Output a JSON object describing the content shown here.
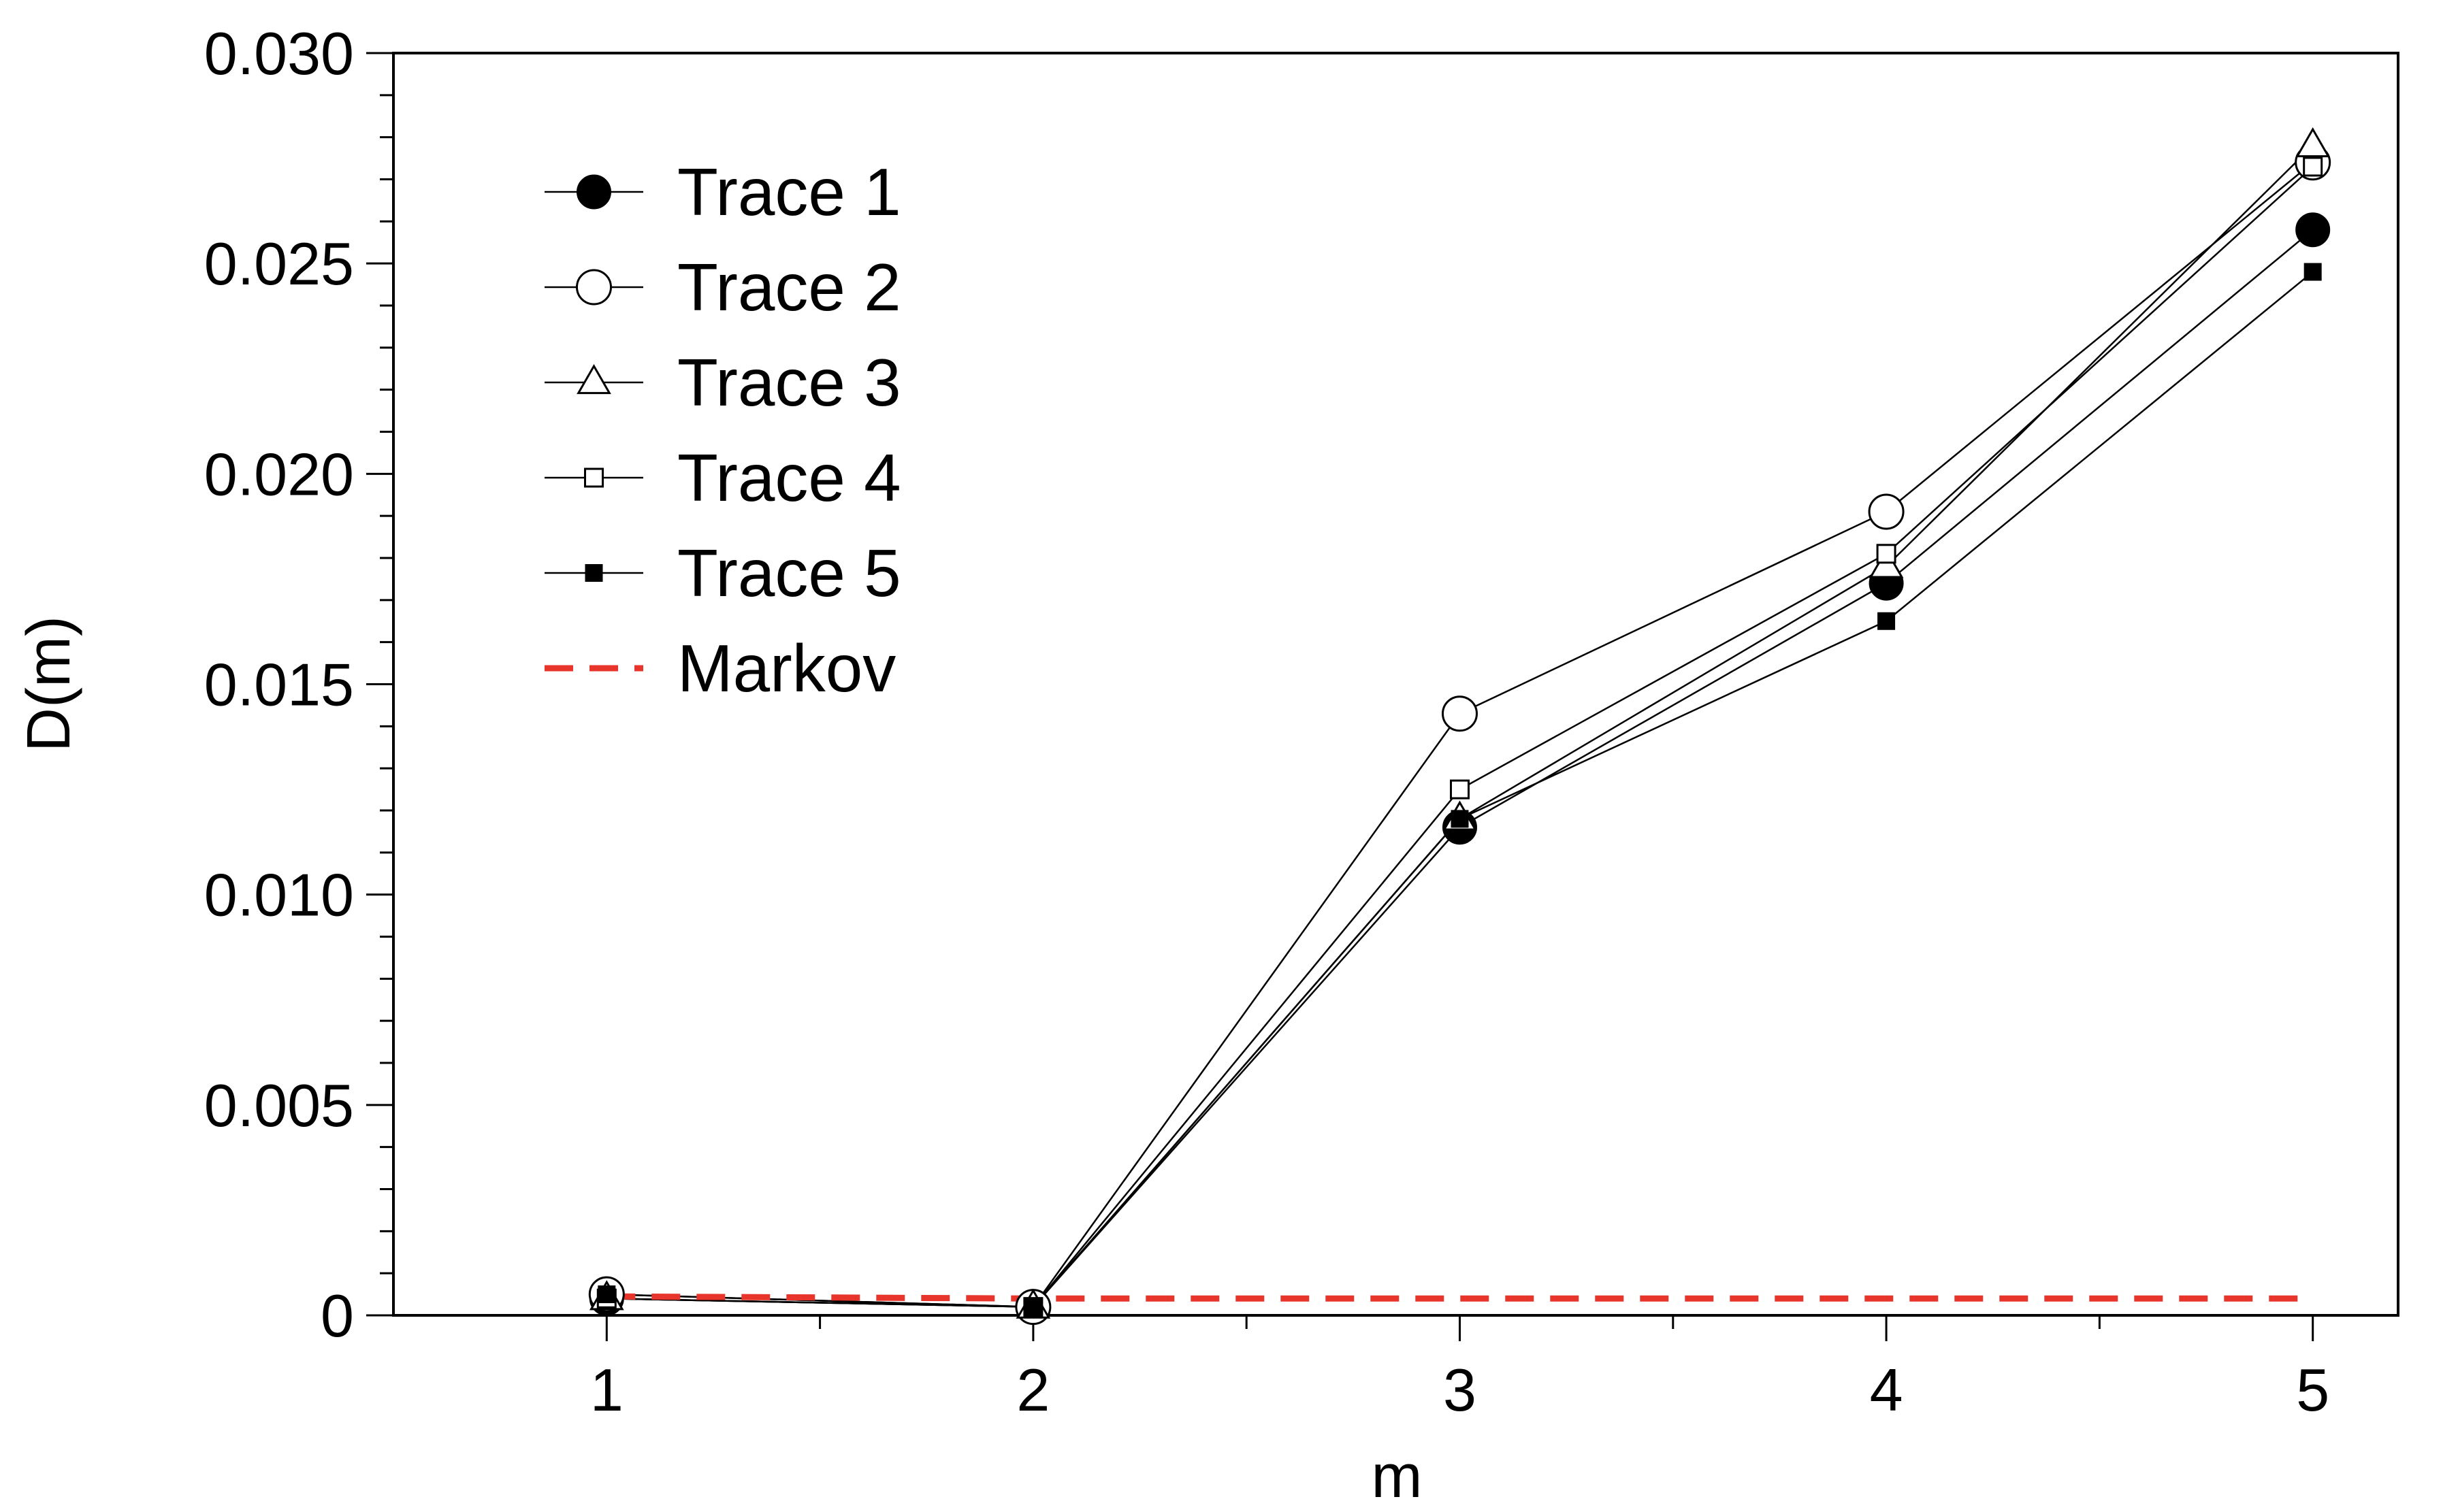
{
  "chart_data": {
    "type": "line",
    "title": "",
    "xlabel": "m",
    "ylabel": "D(m)",
    "x": [
      1,
      2,
      3,
      4,
      5
    ],
    "xlim": [
      0.5,
      5.2
    ],
    "ylim": [
      0,
      0.03
    ],
    "x_ticks": [
      1,
      2,
      3,
      4,
      5
    ],
    "x_tick_labels": [
      "1",
      "2",
      "3",
      "4",
      "5"
    ],
    "x_minor_ticks": [
      1.5,
      2.5,
      3.5,
      4.5
    ],
    "y_ticks": [
      0,
      0.005,
      0.01,
      0.015,
      0.02,
      0.025,
      0.03
    ],
    "y_tick_labels": [
      "0",
      "0.005",
      "0.010",
      "0.015",
      "0.020",
      "0.025",
      "0.030"
    ],
    "y_minor_step": 0.001,
    "grid": false,
    "legend_position": "top-left",
    "series": [
      {
        "name": "Trace 1",
        "marker": "circle-filled",
        "color": "#000000",
        "values": [
          0.0004,
          0.0002,
          0.0116,
          0.0174,
          0.0258
        ]
      },
      {
        "name": "Trace 2",
        "marker": "circle-open",
        "color": "#000000",
        "values": [
          0.0005,
          0.0002,
          0.0143,
          0.0191,
          0.0274
        ]
      },
      {
        "name": "Trace 3",
        "marker": "triangle-open",
        "color": "#000000",
        "values": [
          0.0004,
          0.0002,
          0.0118,
          0.0178,
          0.0278
        ]
      },
      {
        "name": "Trace 4",
        "marker": "square-open",
        "color": "#000000",
        "values": [
          0.0004,
          0.0002,
          0.0125,
          0.0181,
          0.0273
        ]
      },
      {
        "name": "Trace 5",
        "marker": "square-filled",
        "color": "#000000",
        "values": [
          0.0005,
          0.0002,
          0.0118,
          0.0165,
          0.0248
        ]
      },
      {
        "name": "Markov",
        "marker": "none",
        "style": "dashed",
        "color": "#e8352b",
        "values": [
          0.00045,
          0.0004,
          0.0004,
          0.0004,
          0.0004
        ]
      }
    ]
  }
}
